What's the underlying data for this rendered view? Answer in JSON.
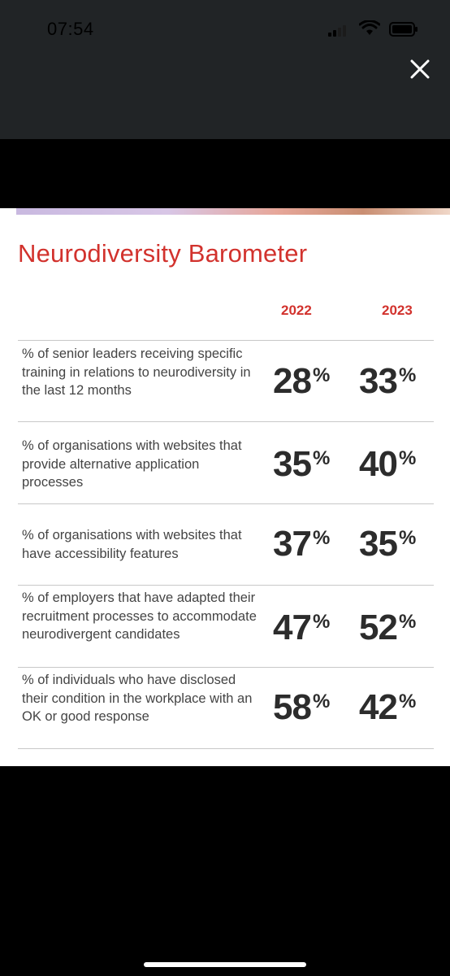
{
  "status_bar": {
    "time": "07:54"
  },
  "viewer": {
    "close_icon": "close-icon"
  },
  "card": {
    "title": "Neurodiversity Barometer",
    "years": [
      "2022",
      "2023"
    ],
    "rows": [
      {
        "label": "% of senior leaders receiving specific training in relations to neurodiversity in the last 12 months",
        "v2022": "28",
        "v2023": "33"
      },
      {
        "label": "% of organisations with websites that provide alternative application processes",
        "v2022": "35",
        "v2023": "40"
      },
      {
        "label": "% of organisations with websites that have accessibility features",
        "v2022": "37",
        "v2023": "35"
      },
      {
        "label": "% of employers that have adapted their recruitment processes to accommodate neurodivergent candidates",
        "v2022": "47",
        "v2023": "52"
      },
      {
        "label": "% of individuals who have disclosed their condition in the workplace with an OK or good response",
        "v2022": "58",
        "v2023": "42"
      }
    ],
    "percent_sign": "%"
  },
  "colors": {
    "accent": "#d2322d",
    "topbar": "#212426"
  }
}
